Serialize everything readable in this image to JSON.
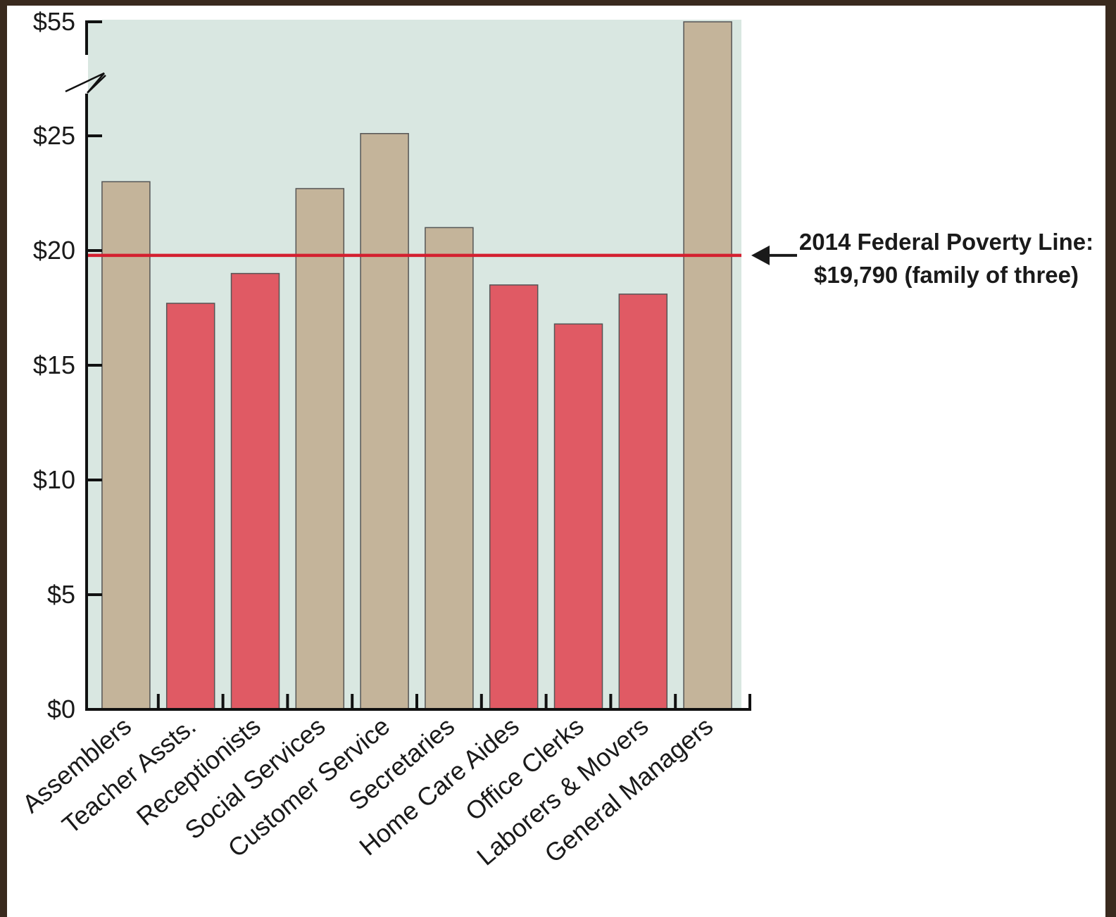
{
  "chart_data": {
    "type": "bar",
    "title": "",
    "xlabel": "",
    "ylabel": "",
    "categories": [
      "Assemblers",
      "Teacher Assts.",
      "Receptionists",
      "Social Services",
      "Customer Service",
      "Secretaries",
      "Home Care Aides",
      "Office Clerks",
      "Laborers & Movers",
      "General Managers"
    ],
    "values": [
      23.0,
      17.7,
      19.0,
      22.7,
      25.6,
      21.0,
      18.5,
      16.8,
      18.1,
      55.0
    ],
    "below_poverty_line": [
      false,
      true,
      true,
      false,
      false,
      false,
      true,
      true,
      true,
      false
    ],
    "y_ticks": [
      {
        "value": 0,
        "label": "$0"
      },
      {
        "value": 5,
        "label": "$5"
      },
      {
        "value": 10,
        "label": "$10"
      },
      {
        "value": 15,
        "label": "$15"
      },
      {
        "value": 20,
        "label": "$20"
      },
      {
        "value": 25,
        "label": "$25"
      },
      {
        "value": 55,
        "label": "$55"
      }
    ],
    "ylim": [
      0,
      55
    ],
    "axis_break": {
      "from": 25,
      "to": 55
    },
    "reference_line": {
      "value": 19.79,
      "label_line1": "2014 Federal Poverty Line:",
      "label_line2": "$19,790 (family of three)",
      "color": "#d42030"
    },
    "colors": {
      "above": "#c4b49a",
      "below": "#e05a64",
      "plot_background": "#d9e7e1",
      "bar_border": "#555555",
      "axis": "#111111"
    },
    "grid": false,
    "legend": "none"
  }
}
